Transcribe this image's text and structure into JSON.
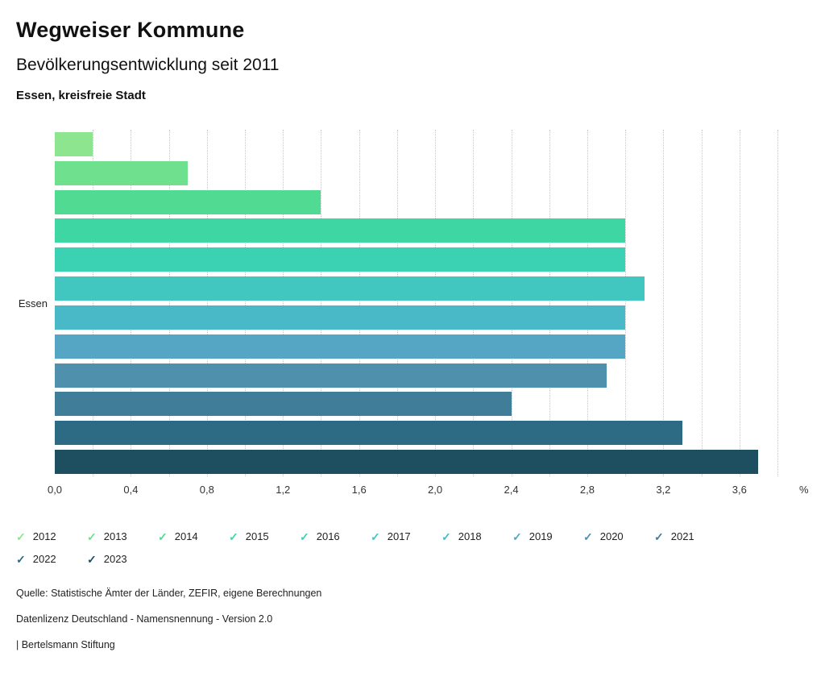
{
  "header": {
    "title": "Wegweiser Kommune",
    "subtitle": "Bevölkerungsentwicklung seit 2011",
    "region": "Essen, kreisfreie Stadt"
  },
  "chart_data": {
    "type": "bar",
    "orientation": "horizontal",
    "group_label": "Essen",
    "unit_label": "%",
    "categories": [
      "2012",
      "2013",
      "2014",
      "2015",
      "2016",
      "2017",
      "2018",
      "2019",
      "2020",
      "2021",
      "2022",
      "2023"
    ],
    "values": [
      0.2,
      0.7,
      1.4,
      3.0,
      3.0,
      3.1,
      3.0,
      3.0,
      2.9,
      2.4,
      3.3,
      3.7
    ],
    "colors": [
      "#8de58f",
      "#6fe08d",
      "#50da92",
      "#3ed7a3",
      "#3bd2b4",
      "#41c7c0",
      "#49b9c7",
      "#55a6c4",
      "#4f90ad",
      "#3f7d99",
      "#2d6a84",
      "#1d4f61"
    ],
    "x_ticks": [
      "0,0",
      "0,4",
      "0,8",
      "1,2",
      "1,6",
      "2,0",
      "2,4",
      "2,8",
      "3,2",
      "3,6"
    ],
    "x_tick_values": [
      0,
      0.4,
      0.8,
      1.2,
      1.6,
      2.0,
      2.4,
      2.8,
      3.2,
      3.6
    ],
    "xlim": [
      0,
      3.8
    ],
    "grid": {
      "vertical_step": 0.2,
      "style": "dotted"
    },
    "legend_position": "bottom",
    "legend_icon": "check"
  },
  "footer": {
    "source": "Quelle: Statistische Ämter der Länder, ZEFIR, eigene Berechnungen",
    "license": "Datenlizenz Deutschland - Namensnennung - Version 2.0",
    "attribution": "| Bertelsmann Stiftung"
  }
}
